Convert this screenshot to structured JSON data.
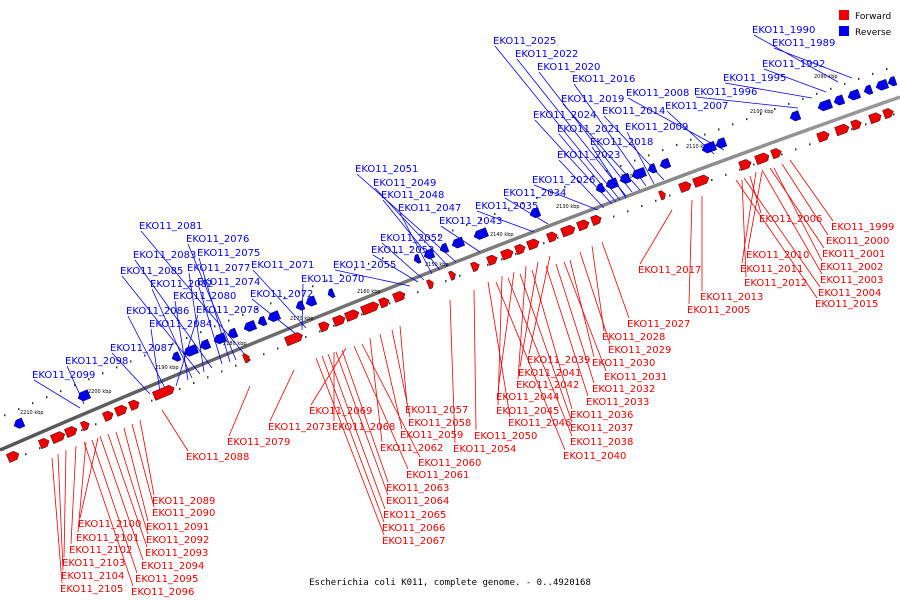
{
  "legend": {
    "forward_label": "Forward",
    "reverse_label": "Reverse",
    "forward_color": "#ee0000",
    "reverse_color": "#0000ee"
  },
  "caption": "Escherichia coli K011, complete genome. - 0..4920168",
  "scale_marks": [
    "2090 kbp",
    "2100 kbp",
    "2110 kbp",
    "2120 kbp",
    "2130 kbp",
    "2140 kbp",
    "2150 kbp",
    "2160 kbp",
    "2170 kbp",
    "2180 kbp",
    "2190 kbp",
    "2200 kbp",
    "2210 kbp"
  ],
  "reverse_genes": [
    "EKO11_1990",
    "EKO11_1989",
    "EKO11_1992",
    "EKO11_1995",
    "EKO11_1996",
    "EKO11_2008",
    "EKO11_2007",
    "EKO11_2025",
    "EKO11_2022",
    "EKO11_2020",
    "EKO11_2016",
    "EKO11_2019",
    "EKO11_2014",
    "EKO11_2024",
    "EKO11_2021",
    "EKO11_2009",
    "EKO11_2018",
    "EKO11_2023",
    "EKO11_2026",
    "EKO11_2034",
    "EKO11_2035",
    "EKO11_2043",
    "EKO11_2051",
    "EKO11_2049",
    "EKO11_2048",
    "EKO11_2047",
    "EKO11_2052",
    "EKO11_2053",
    "EKO11_2055",
    "EKO11_2070",
    "EKO11_2071",
    "EKO11_2072",
    "EKO11_2081",
    "EKO11_2076",
    "EKO11_2075",
    "EKO11_2083",
    "EKO11_2077",
    "EKO11_2085",
    "EKO11_2074",
    "EKO11_2082",
    "EKO11_2080",
    "EKO11_2078",
    "EKO11_2086",
    "EKO11_2084",
    "EKO11_2087",
    "EKO11_2098",
    "EKO11_2099"
  ],
  "forward_genes": [
    "EKO11_2006",
    "EKO11_1999",
    "EKO11_2000",
    "EKO11_2010",
    "EKO11_2001",
    "EKO11_2011",
    "EKO11_2002",
    "EKO11_2012",
    "EKO11_2003",
    "EKO11_2004",
    "EKO11_2013",
    "EKO11_2005",
    "EKO11_2015",
    "EKO11_2017",
    "EKO11_2027",
    "EKO11_2028",
    "EKO11_2029",
    "EKO11_2039",
    "EKO11_2030",
    "EKO11_2041",
    "EKO11_2031",
    "EKO11_2042",
    "EKO11_2032",
    "EKO11_2044",
    "EKO11_2033",
    "EKO11_2045",
    "EKO11_2036",
    "EKO11_2046",
    "EKO11_2037",
    "EKO11_2050",
    "EKO11_2038",
    "EKO11_2054",
    "EKO11_2040",
    "EKO11_2057",
    "EKO11_2069",
    "EKO11_2058",
    "EKO11_2068",
    "EKO11_2059",
    "EKO11_2062",
    "EKO11_2060",
    "EKO11_2061",
    "EKO11_2063",
    "EKO11_2064",
    "EKO11_2065",
    "EKO11_2066",
    "EKO11_2067",
    "EKO11_2073",
    "EKO11_2079",
    "EKO11_2088",
    "EKO11_2089",
    "EKO11_2090",
    "EKO11_2100",
    "EKO11_2091",
    "EKO11_2101",
    "EKO11_2092",
    "EKO11_2102",
    "EKO11_2093",
    "EKO11_2103",
    "EKO11_2094",
    "EKO11_2104",
    "EKO11_2095",
    "EKO11_2105",
    "EKO11_2096"
  ]
}
